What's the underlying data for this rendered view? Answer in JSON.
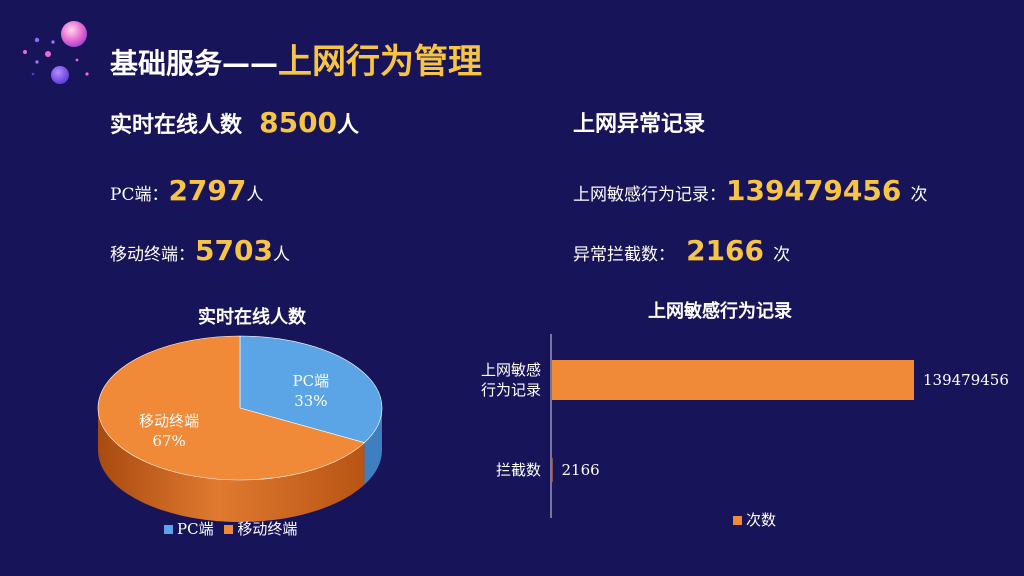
{
  "header": {
    "title_prefix": "基础服务——",
    "title_main": "上网行为管理"
  },
  "online": {
    "label": "实时在线人数",
    "value": "8500",
    "unit": "人",
    "pc_label": "PC端：",
    "pc_value": "2797",
    "pc_unit": "人",
    "mobile_label": "移动终端：",
    "mobile_value": "5703",
    "mobile_unit": "人"
  },
  "abnormal": {
    "label": "上网异常记录",
    "sensitive_label": "上网敏感行为记录：",
    "sensitive_value": "139479456",
    "sensitive_unit": "次",
    "blocked_label": "异常拦截数：",
    "blocked_value": "2166",
    "blocked_unit": "次"
  },
  "colors": {
    "background": "#17145a",
    "accent": "#f7c543",
    "pc": "#5ba4e5",
    "mobile": "#f08a38"
  },
  "chart_data": [
    {
      "type": "pie",
      "title": "实时在线人数",
      "categories": [
        "PC端",
        "移动终端"
      ],
      "values": [
        33,
        67
      ],
      "data_labels": [
        "33%",
        "67%"
      ],
      "legend": "bottom",
      "legend_labels": [
        "PC端",
        "移动终端"
      ]
    },
    {
      "type": "bar",
      "orientation": "horizontal",
      "title": "上网敏感行为记录",
      "categories": [
        "上网敏感行为记录",
        "拦截数"
      ],
      "category_lines": [
        [
          "上网敏感",
          "行为记录"
        ],
        [
          "拦截数"
        ]
      ],
      "series": [
        {
          "name": "次数",
          "values": [
            139479456,
            2166
          ]
        }
      ],
      "data_labels": [
        "139479456",
        "2166"
      ],
      "legend": "bottom"
    }
  ]
}
